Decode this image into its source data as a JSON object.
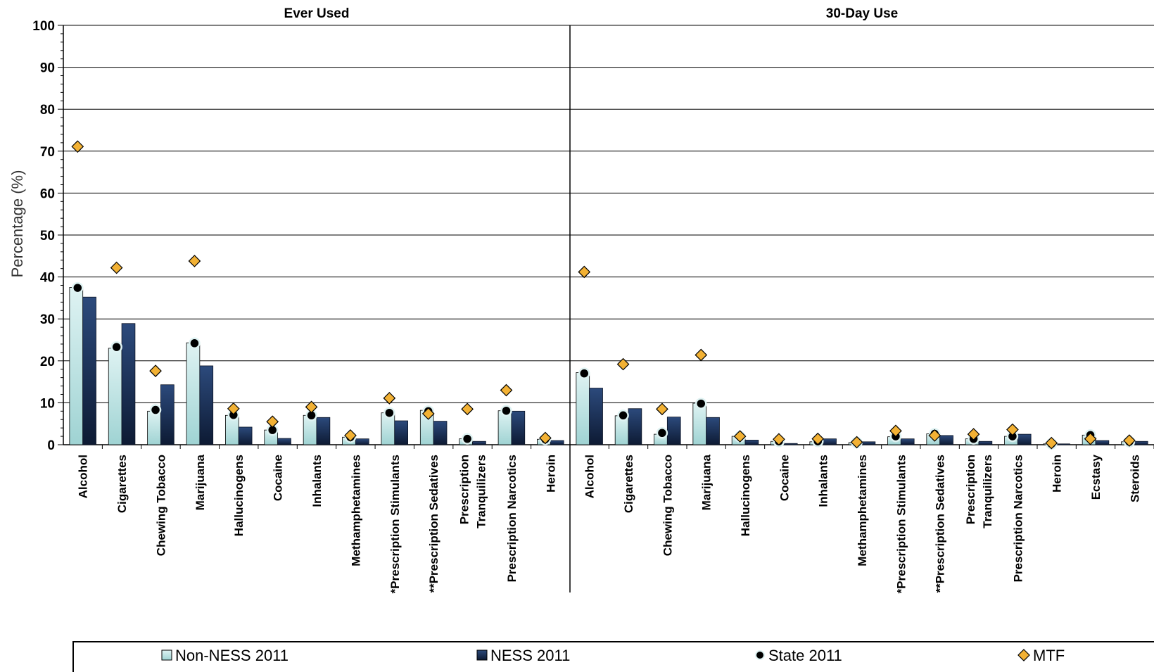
{
  "chart_data": {
    "type": "bar",
    "ylabel": "Percentage (%)",
    "ylim": [
      0,
      100
    ],
    "yticks": [
      "0",
      "10",
      "20",
      "30",
      "40",
      "50",
      "60",
      "70",
      "80",
      "90",
      "100"
    ],
    "grid": "horizontal",
    "legend_position": "bottom",
    "colors": {
      "non_ness": "#dff3f3",
      "non_ness_bottom": "#9fd3d3",
      "ness": "#2c4a7c",
      "ness_bottom": "#0d1a33",
      "state": "#000000",
      "mtf": "#f2b134"
    },
    "legend": [
      "Non-NESS 2011",
      "NESS 2011",
      "State 2011",
      "MTF"
    ],
    "panels": [
      {
        "title": "Ever Used",
        "categories": [
          [
            "Alcohol"
          ],
          [
            "Cigarettes"
          ],
          [
            "Chewing Tobacco"
          ],
          [
            "Marijuana"
          ],
          [
            "Hallucinogens"
          ],
          [
            "Cocaine"
          ],
          [
            "Inhalants"
          ],
          [
            "Methamphetamines"
          ],
          [
            "*Prescription Stimulants"
          ],
          [
            "**Prescription Sedatives"
          ],
          [
            "Prescription",
            "Tranquilizers"
          ],
          [
            "Prescription Narcotics"
          ],
          [
            "Heroin"
          ]
        ],
        "series": [
          {
            "name": "Non-NESS 2011",
            "kind": "bar",
            "values": [
              37.5,
              23,
              8,
              24.3,
              7,
              3.5,
              7,
              1.8,
              7.6,
              8.2,
              1.4,
              8.1,
              1.3
            ]
          },
          {
            "name": "NESS 2011",
            "kind": "bar",
            "values": [
              35.2,
              28.9,
              14.3,
              18.8,
              4.2,
              1.5,
              6.5,
              1.4,
              5.7,
              5.6,
              0.8,
              8,
              1
            ]
          },
          {
            "name": "State 2011",
            "kind": "marker",
            "values": [
              37.4,
              23.3,
              8.3,
              24.2,
              7.1,
              3.5,
              7,
              1.8,
              7.6,
              8,
              1.4,
              8.1,
              1.3
            ]
          },
          {
            "name": "MTF",
            "kind": "diamond",
            "values": [
              71.1,
              42.2,
              17.6,
              43.8,
              8.6,
              5.5,
              9,
              2.2,
              11.1,
              7.4,
              8.5,
              13,
              1.6
            ]
          }
        ]
      },
      {
        "title": "30-Day Use",
        "categories": [
          [
            "Alcohol"
          ],
          [
            "Cigarettes"
          ],
          [
            "Chewing Tobacco"
          ],
          [
            "Marijuana"
          ],
          [
            "Hallucinogens"
          ],
          [
            "Cocaine"
          ],
          [
            "Inhalants"
          ],
          [
            "Methamphetamines"
          ],
          [
            "*Prescription Stimulants"
          ],
          [
            "**Prescription Sedatives"
          ],
          [
            "Prescription",
            "Tranquilizers"
          ],
          [
            "Prescription Narcotics"
          ],
          [
            "Heroin"
          ],
          [
            "Ecstasy"
          ],
          [
            "Steroids"
          ]
        ],
        "series": [
          {
            "name": "Non-NESS 2011",
            "kind": "bar",
            "values": [
              17.2,
              6.9,
              2.5,
              9.9,
              2,
              0.8,
              0.7,
              0.5,
              1.9,
              2.6,
              1.4,
              2,
              0.2,
              2.3,
              0.7
            ]
          },
          {
            "name": "NESS 2011",
            "kind": "bar",
            "values": [
              13.5,
              8.6,
              6.6,
              6.5,
              1.1,
              0.3,
              1.4,
              0.7,
              1.4,
              2.2,
              0.8,
              2.5,
              0.2,
              1,
              0.8
            ]
          },
          {
            "name": "State 2011",
            "kind": "marker",
            "values": [
              17,
              7,
              2.8,
              9.8,
              1.9,
              0.8,
              0.8,
              0.5,
              2,
              2.6,
              1.4,
              2,
              0.2,
              2.3,
              0.7
            ]
          },
          {
            "name": "MTF",
            "kind": "diamond",
            "values": [
              41.2,
              19.2,
              8.5,
              21.4,
              2,
              1.3,
              1.4,
              0.6,
              3.3,
              2.2,
              2.5,
              3.6,
              0.4,
              1.4,
              1
            ]
          }
        ]
      }
    ]
  }
}
